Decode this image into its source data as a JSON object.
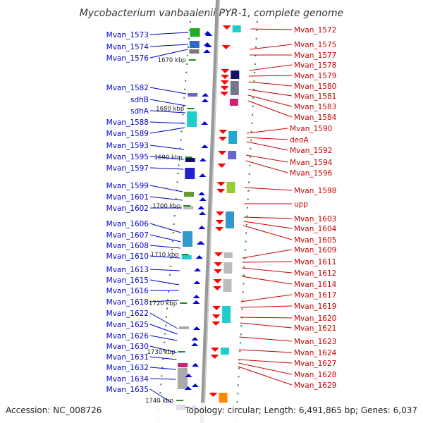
{
  "title": "Mycobacterium vanbaalenii PYR-1, complete genome",
  "accession": "Accession: NC_008726",
  "topology": "Topology: circular; Length: 6,491,865 bp; Genes: 6,037",
  "colors": {
    "forward_strand_label": "#0000cc",
    "reverse_strand_label": "#cc0000",
    "forward_arrow": "#0000dd",
    "reverse_arrow": "#ff0000",
    "backbone": "#999999",
    "tick_green": "#228822"
  },
  "kbp_ticks": [
    "1670 kbp",
    "1680 kbp",
    "1690 kbp",
    "1700 kbp",
    "1710 kbp",
    "1720 kbp",
    "1730 kbp",
    "1740 kbp"
  ],
  "left_genes": [
    "Mvan_1573",
    "Mvan_1574",
    "Mvan_1576",
    "Mvan_1582",
    "sdhB",
    "sdhA",
    "Mvan_1588",
    "Mvan_1589",
    "Mvan_1593",
    "Mvan_1595",
    "Mvan_1597",
    "Mvan_1599",
    "Mvan_1601",
    "Mvan_1602",
    "Mvan_1606",
    "Mvan_1607",
    "Mvan_1608",
    "Mvan_1610",
    "Mvan_1613",
    "Mvan_1615",
    "Mvan_1616",
    "Mvan_1618",
    "Mvan_1622",
    "Mvan_1625",
    "Mvan_1626",
    "Mvan_1630",
    "Mvan_1631",
    "Mvan_1632",
    "Mvan_1634",
    "Mvan_1635"
  ],
  "right_genes": [
    "Mvan_1572",
    "Mvan_1575",
    "Mvan_1577",
    "Mvan_1578",
    "Mvan_1579",
    "Mvan_1580",
    "Mvan_1581",
    "Mvan_1583",
    "Mvan_1584",
    "Mvan_1590",
    "deoA",
    "Mvan_1592",
    "Mvan_1594",
    "Mvan_1596",
    "Mvan_1598",
    "upp",
    "Mvan_1603",
    "Mvan_1604",
    "Mvan_1605",
    "Mvan_1609",
    "Mvan_1611",
    "Mvan_1612",
    "Mvan_1614",
    "Mvan_1617",
    "Mvan_1619",
    "Mvan_1620",
    "Mvan_1621",
    "Mvan_1623",
    "Mvan_1624",
    "Mvan_1627",
    "Mvan_1628",
    "Mvan_1629"
  ]
}
